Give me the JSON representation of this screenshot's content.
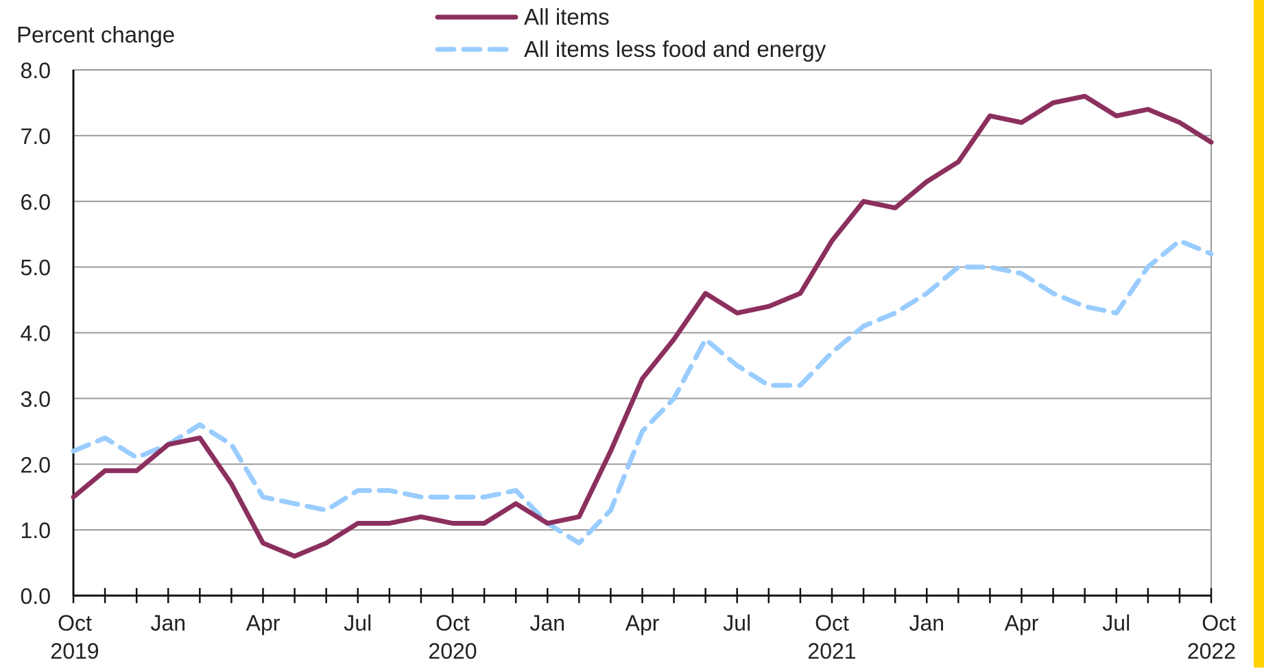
{
  "chart_data": {
    "type": "line",
    "ylabel": "Percent change",
    "ylim": [
      0,
      8
    ],
    "yticks": [
      "0.0",
      "1.0",
      "2.0",
      "3.0",
      "4.0",
      "5.0",
      "6.0",
      "7.0",
      "8.0"
    ],
    "grid": true,
    "legend_position": "top-center",
    "x": [
      "2019-10",
      "2019-11",
      "2019-12",
      "2020-01",
      "2020-02",
      "2020-03",
      "2020-04",
      "2020-05",
      "2020-06",
      "2020-07",
      "2020-08",
      "2020-09",
      "2020-10",
      "2020-11",
      "2020-12",
      "2021-01",
      "2021-02",
      "2021-03",
      "2021-04",
      "2021-05",
      "2021-06",
      "2021-07",
      "2021-08",
      "2021-09",
      "2021-10",
      "2021-11",
      "2021-12",
      "2022-01",
      "2022-02",
      "2022-03",
      "2022-04",
      "2022-05",
      "2022-06",
      "2022-07",
      "2022-08",
      "2022-09",
      "2022-10"
    ],
    "x_tick_labels": [
      {
        "index": 0,
        "month": "Oct",
        "year": "2019"
      },
      {
        "index": 3,
        "month": "Jan",
        "year": ""
      },
      {
        "index": 6,
        "month": "Apr",
        "year": ""
      },
      {
        "index": 9,
        "month": "Jul",
        "year": ""
      },
      {
        "index": 12,
        "month": "Oct",
        "year": "2020"
      },
      {
        "index": 15,
        "month": "Jan",
        "year": ""
      },
      {
        "index": 18,
        "month": "Apr",
        "year": ""
      },
      {
        "index": 21,
        "month": "Jul",
        "year": ""
      },
      {
        "index": 24,
        "month": "Oct",
        "year": "2021"
      },
      {
        "index": 27,
        "month": "Jan",
        "year": ""
      },
      {
        "index": 30,
        "month": "Apr",
        "year": ""
      },
      {
        "index": 33,
        "month": "Jul",
        "year": ""
      },
      {
        "index": 36,
        "month": "Oct",
        "year": "2022"
      }
    ],
    "series": [
      {
        "name": "All items",
        "color": "#8b2f5e",
        "style": "solid",
        "values": [
          1.5,
          1.9,
          1.9,
          2.3,
          2.4,
          1.7,
          0.8,
          0.6,
          0.8,
          1.1,
          1.1,
          1.2,
          1.1,
          1.1,
          1.4,
          1.1,
          1.2,
          2.2,
          3.3,
          3.9,
          4.6,
          4.3,
          4.4,
          4.6,
          5.4,
          6.0,
          5.9,
          6.3,
          6.6,
          7.3,
          7.2,
          7.5,
          7.6,
          7.3,
          7.4,
          7.2,
          6.9
        ]
      },
      {
        "name": "All items less food and energy",
        "color": "#99ccff",
        "style": "dashed",
        "values": [
          2.2,
          2.4,
          2.1,
          2.3,
          2.6,
          2.3,
          1.5,
          1.4,
          1.3,
          1.6,
          1.6,
          1.5,
          1.5,
          1.5,
          1.6,
          1.1,
          0.8,
          1.3,
          2.5,
          3.0,
          3.9,
          3.5,
          3.2,
          3.2,
          3.7,
          4.1,
          4.3,
          4.6,
          5.0,
          5.0,
          4.9,
          4.6,
          4.4,
          4.3,
          5.0,
          5.4,
          5.2
        ]
      }
    ]
  }
}
